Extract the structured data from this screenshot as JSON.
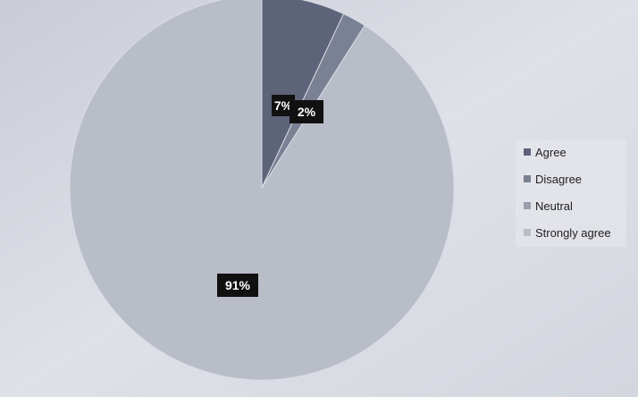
{
  "chart_data": {
    "type": "pie",
    "categories": [
      "Agree",
      "Disagree",
      "Neutral",
      "Strongly agree"
    ],
    "values": [
      7,
      2,
      0,
      91
    ],
    "data_labels": [
      "7%",
      "2%",
      "",
      "91%"
    ],
    "colors": [
      "#5d6378",
      "#7b8194",
      "#9a9fae",
      "#b9bdc8"
    ],
    "legend": {
      "position": "right",
      "entries": [
        "Agree",
        "Disagree",
        "Neutral",
        "Strongly agree"
      ]
    }
  }
}
